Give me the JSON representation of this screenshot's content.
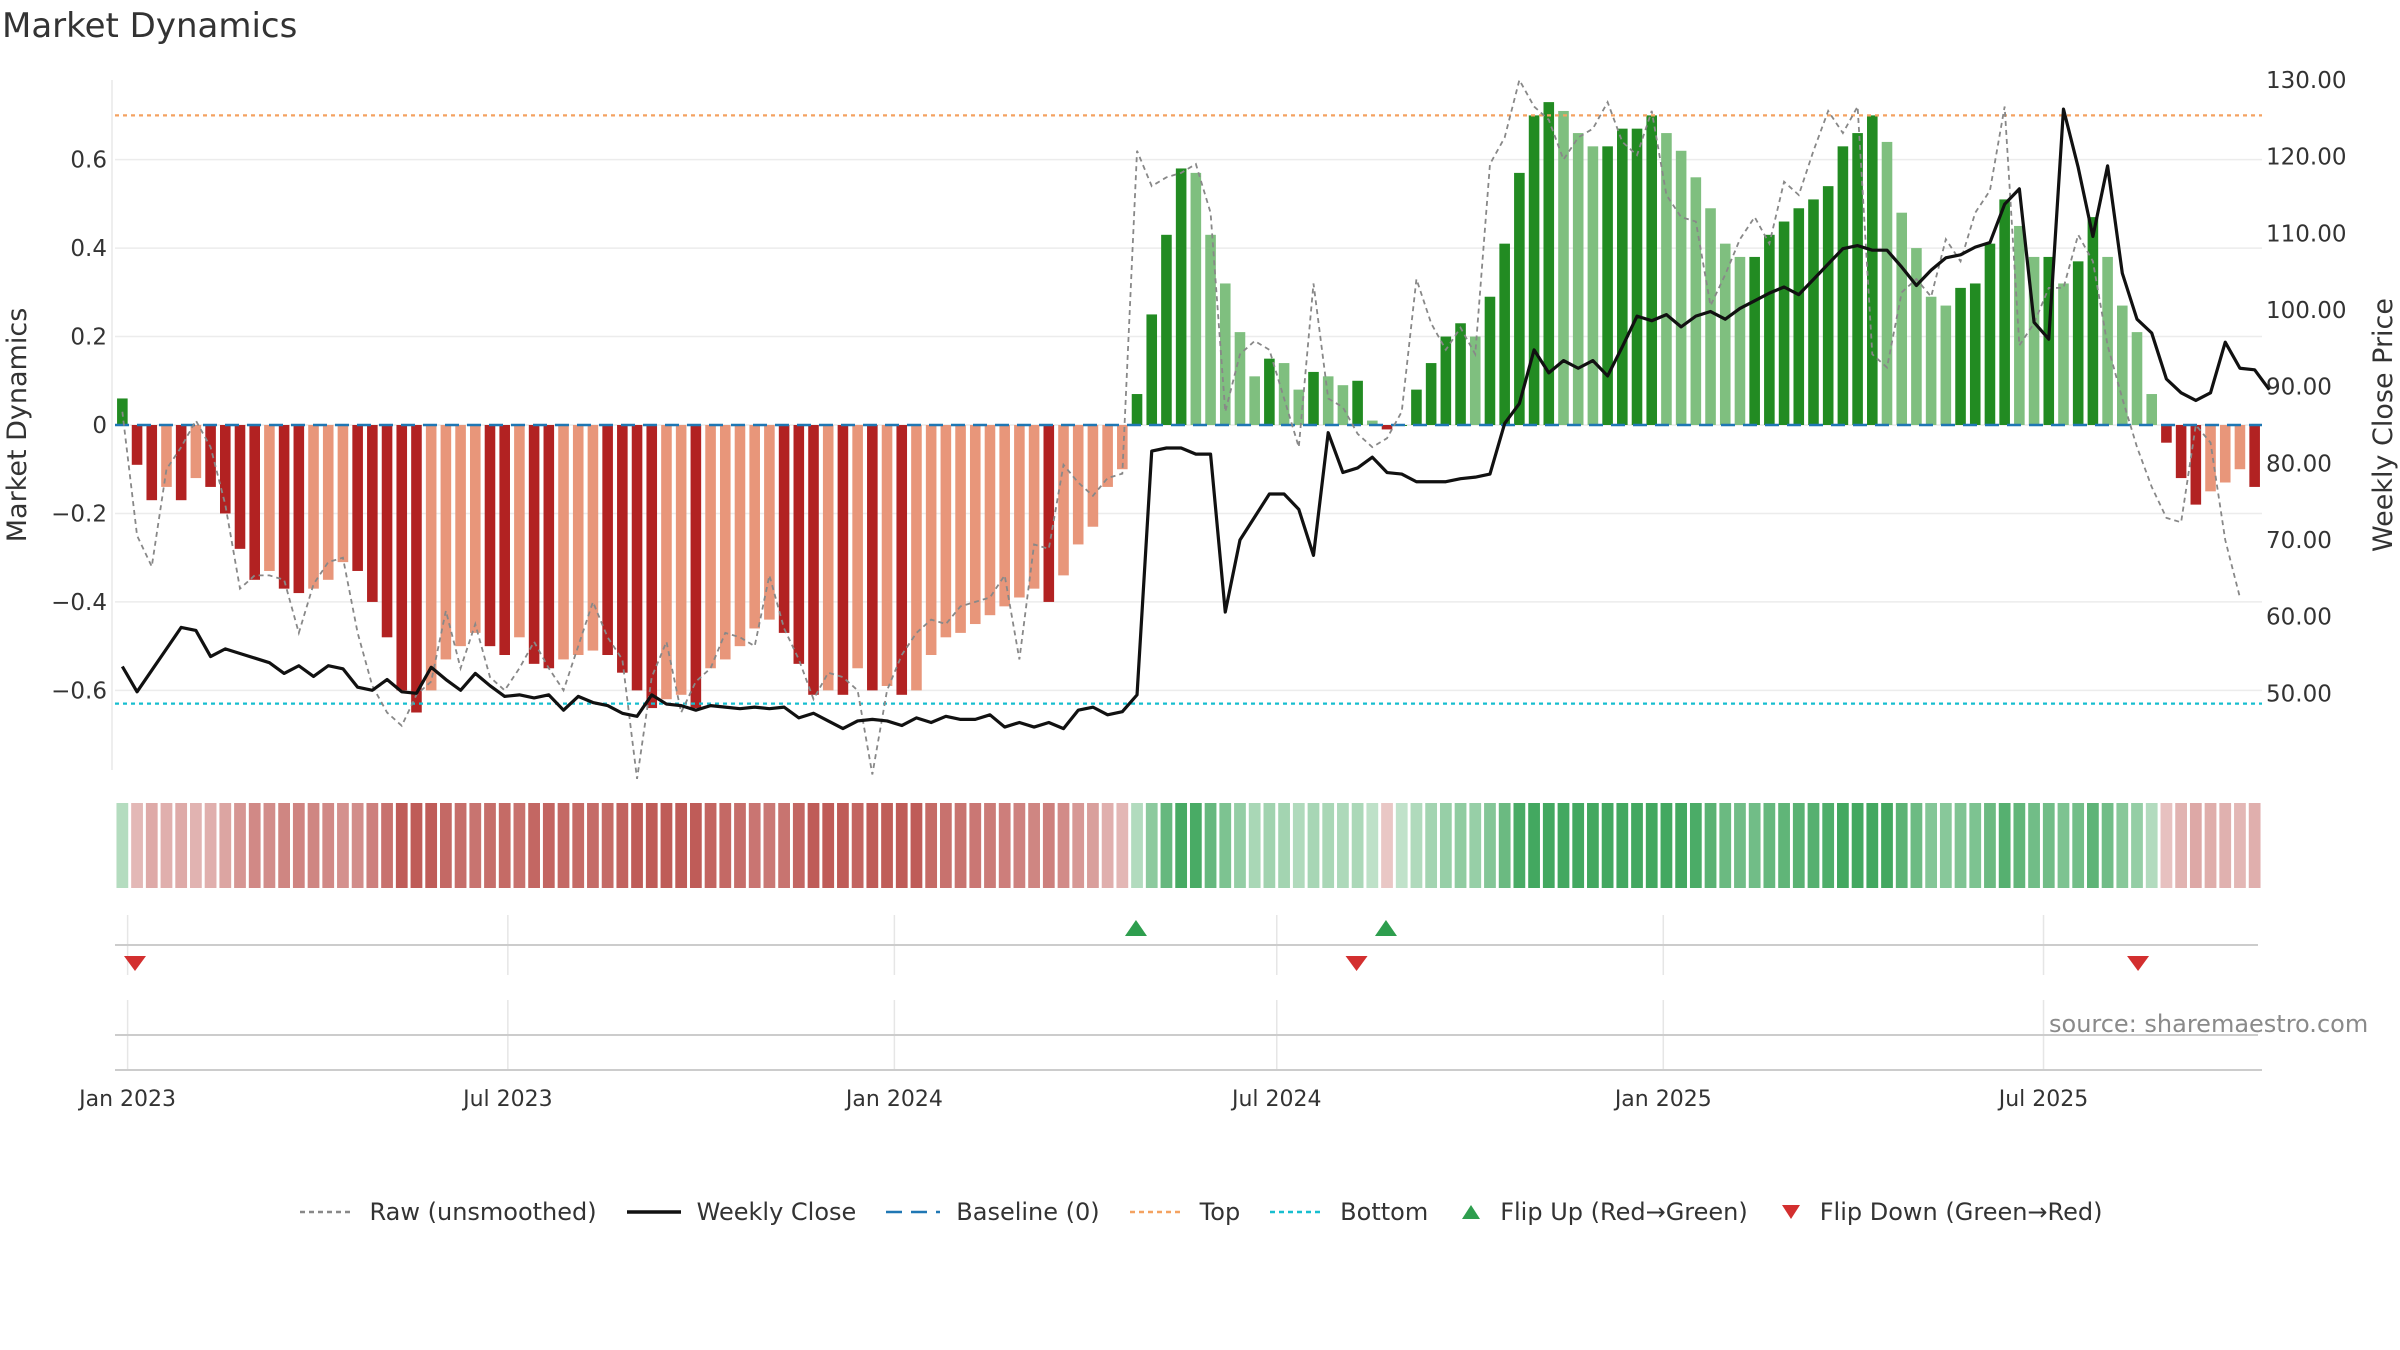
{
  "title": "Market Dynamics",
  "source": "source: sharemaestro.com",
  "colors": {
    "strong_red": "#b22222",
    "light_red": "#e8967a",
    "strong_green": "#228b22",
    "light_green": "#7fbf7f",
    "weekly_close": "#111111",
    "raw": "#888888",
    "baseline": "#1f77b4",
    "top": "#f4a261",
    "bottom": "#17becf",
    "flip_up": "#2e9e4e",
    "flip_down": "#d32f2f"
  },
  "legend": [
    {
      "key": "raw",
      "label": "Raw (unsmoothed)",
      "symbol": "dotted-line"
    },
    {
      "key": "weekly_close",
      "label": "Weekly Close",
      "symbol": "solid-line"
    },
    {
      "key": "baseline",
      "label": "Baseline (0)",
      "symbol": "dashed-line"
    },
    {
      "key": "top",
      "label": "Top",
      "symbol": "dotted-line"
    },
    {
      "key": "bottom",
      "label": "Bottom",
      "symbol": "dotted-line"
    },
    {
      "key": "flip_up",
      "label": "Flip Up (Red→Green)",
      "symbol": "triangle-up"
    },
    {
      "key": "flip_down",
      "label": "Flip Down (Green→Red)",
      "symbol": "triangle-down"
    }
  ],
  "chart_data": {
    "type": "bar",
    "x_start": "2022-12-26",
    "x_interval": "weekly",
    "x_ticks": [
      "Jan 2023",
      "Jul 2023",
      "Jan 2024",
      "Jul 2024",
      "Jan 2025",
      "Jul 2025"
    ],
    "y_left": {
      "label": "Market Dynamics",
      "ylim": [
        -0.78,
        0.78
      ],
      "ticks": [
        "−0.6",
        "−0.4",
        "−0.2",
        "0",
        "0.2",
        "0.4",
        "0.6"
      ]
    },
    "y_right": {
      "label": "Weekly Close Price",
      "ylim": [
        40,
        130
      ],
      "ticks": [
        "50.00",
        "60.00",
        "70.00",
        "80.00",
        "90.00",
        "100.00",
        "110.00",
        "120.00",
        "130.00"
      ]
    },
    "top_line": 0.7,
    "bottom_line": -0.63,
    "grid": true,
    "legend_position": "bottom",
    "series": [
      {
        "name": "Market Dynamics",
        "type": "bar",
        "values": [
          0.06,
          -0.09,
          -0.17,
          -0.14,
          -0.17,
          -0.12,
          -0.14,
          -0.2,
          -0.28,
          -0.35,
          -0.33,
          -0.37,
          -0.38,
          -0.37,
          -0.35,
          -0.31,
          -0.33,
          -0.4,
          -0.48,
          -0.6,
          -0.65,
          -0.6,
          -0.53,
          -0.5,
          -0.47,
          -0.5,
          -0.52,
          -0.48,
          -0.54,
          -0.55,
          -0.53,
          -0.52,
          -0.51,
          -0.52,
          -0.56,
          -0.6,
          -0.64,
          -0.62,
          -0.61,
          -0.64,
          -0.55,
          -0.53,
          -0.5,
          -0.46,
          -0.44,
          -0.47,
          -0.54,
          -0.61,
          -0.6,
          -0.61,
          -0.55,
          -0.6,
          -0.59,
          -0.61,
          -0.6,
          -0.52,
          -0.48,
          -0.47,
          -0.45,
          -0.43,
          -0.41,
          -0.39,
          -0.37,
          -0.4,
          -0.34,
          -0.27,
          -0.23,
          -0.14,
          -0.1,
          0.07,
          0.25,
          0.43,
          0.58,
          0.57,
          0.43,
          0.32,
          0.21,
          0.11,
          0.15,
          0.14,
          0.08,
          0.12,
          0.11,
          0.09,
          0.1,
          0.01,
          -0.01,
          0.0,
          0.08,
          0.14,
          0.2,
          0.23,
          0.2,
          0.29,
          0.41,
          0.57,
          0.7,
          0.73,
          0.71,
          0.66,
          0.63,
          0.63,
          0.67,
          0.67,
          0.7,
          0.66,
          0.62,
          0.56,
          0.49,
          0.41,
          0.38,
          0.38,
          0.43,
          0.46,
          0.49,
          0.51,
          0.54,
          0.63,
          0.66,
          0.7,
          0.64,
          0.48,
          0.4,
          0.29,
          0.27,
          0.31,
          0.32,
          0.41,
          0.51,
          0.45,
          0.38,
          0.38,
          0.32,
          0.37,
          0.47,
          0.38,
          0.27,
          0.21,
          0.07,
          -0.04,
          -0.12,
          -0.18,
          -0.15,
          -0.13,
          -0.1,
          -0.14
        ]
      },
      {
        "name": "Raw (unsmoothed)",
        "type": "line",
        "values": [
          0.03,
          -0.25,
          -0.32,
          -0.1,
          -0.05,
          0.01,
          -0.05,
          -0.18,
          -0.37,
          -0.34,
          -0.34,
          -0.35,
          -0.47,
          -0.36,
          -0.31,
          -0.3,
          -0.47,
          -0.59,
          -0.65,
          -0.68,
          -0.61,
          -0.58,
          -0.42,
          -0.55,
          -0.45,
          -0.57,
          -0.6,
          -0.55,
          -0.49,
          -0.55,
          -0.6,
          -0.5,
          -0.4,
          -0.48,
          -0.53,
          -0.8,
          -0.57,
          -0.49,
          -0.65,
          -0.58,
          -0.55,
          -0.47,
          -0.48,
          -0.5,
          -0.34,
          -0.46,
          -0.53,
          -0.62,
          -0.56,
          -0.57,
          -0.6,
          -0.79,
          -0.6,
          -0.52,
          -0.47,
          -0.44,
          -0.45,
          -0.41,
          -0.4,
          -0.39,
          -0.34,
          -0.53,
          -0.27,
          -0.28,
          -0.09,
          -0.13,
          -0.16,
          -0.12,
          -0.11,
          0.62,
          0.54,
          0.56,
          0.57,
          0.59,
          0.48,
          0.03,
          0.16,
          0.19,
          0.17,
          0.06,
          -0.05,
          0.32,
          0.06,
          0.04,
          -0.02,
          -0.05,
          -0.03,
          0.03,
          0.33,
          0.23,
          0.17,
          0.22,
          0.16,
          0.59,
          0.65,
          0.78,
          0.72,
          0.69,
          0.6,
          0.65,
          0.67,
          0.73,
          0.64,
          0.61,
          0.71,
          0.52,
          0.47,
          0.46,
          0.27,
          0.34,
          0.42,
          0.47,
          0.41,
          0.55,
          0.52,
          0.62,
          0.71,
          0.66,
          0.72,
          0.16,
          0.13,
          0.3,
          0.33,
          0.29,
          0.42,
          0.37,
          0.48,
          0.53,
          0.72,
          0.18,
          0.23,
          0.31,
          0.31,
          0.43,
          0.37,
          0.18,
          0.06,
          -0.05,
          -0.14,
          -0.21,
          -0.22,
          0.0,
          -0.04,
          -0.26,
          -0.39
        ]
      },
      {
        "name": "Weekly Close",
        "type": "line",
        "axis": "right",
        "values": [
          53.5,
          50.2,
          53.0,
          55.8,
          58.6,
          58.2,
          54.8,
          55.8,
          55.2,
          54.6,
          54.0,
          52.6,
          53.6,
          52.2,
          53.6,
          53.2,
          50.8,
          50.4,
          51.8,
          50.2,
          50.0,
          53.4,
          51.8,
          50.4,
          52.6,
          51.0,
          49.6,
          49.8,
          49.4,
          49.8,
          47.8,
          49.6,
          48.8,
          48.4,
          47.4,
          47.0,
          49.8,
          48.6,
          48.4,
          47.8,
          48.4,
          48.2,
          48.0,
          48.2,
          48.0,
          48.2,
          46.8,
          47.4,
          46.4,
          45.4,
          46.4,
          46.6,
          46.4,
          45.8,
          46.8,
          46.2,
          47.0,
          46.6,
          46.6,
          47.2,
          45.6,
          46.2,
          45.6,
          46.2,
          45.4,
          47.8,
          48.2,
          47.2,
          47.6,
          49.8,
          81.6,
          82.0,
          82.0,
          81.2,
          81.2,
          60.6,
          70.0,
          73.0,
          76.0,
          76.0,
          74.0,
          68.0,
          84.0,
          78.8,
          79.4,
          80.8,
          78.8,
          78.6,
          77.6,
          77.6,
          77.6,
          78.0,
          78.2,
          78.6,
          85.2,
          87.8,
          94.8,
          91.8,
          93.4,
          92.4,
          93.4,
          91.4,
          95.2,
          99.2,
          98.6,
          99.4,
          97.8,
          99.2,
          99.8,
          98.8,
          100.2,
          101.2,
          102.2,
          103.0,
          102.0,
          104.0,
          106.0,
          108.0,
          108.4,
          107.8,
          107.8,
          105.6,
          103.2,
          105.2,
          106.8,
          107.2,
          108.2,
          108.8,
          113.8,
          115.8,
          98.4,
          96.2,
          126.2,
          118.6,
          109.6,
          118.8,
          104.8,
          98.8,
          97.0,
          91.0,
          89.2,
          88.2,
          89.2,
          95.8,
          92.4,
          92.2,
          89.6
        ]
      }
    ],
    "flips": [
      {
        "type": "down",
        "date": "Jan 2023"
      },
      {
        "type": "up",
        "date": "Apr 2024"
      },
      {
        "type": "down",
        "date": "Aug 2024"
      },
      {
        "type": "up",
        "date": "Aug 2024"
      },
      {
        "type": "down",
        "date": "Aug 2025"
      }
    ]
  }
}
